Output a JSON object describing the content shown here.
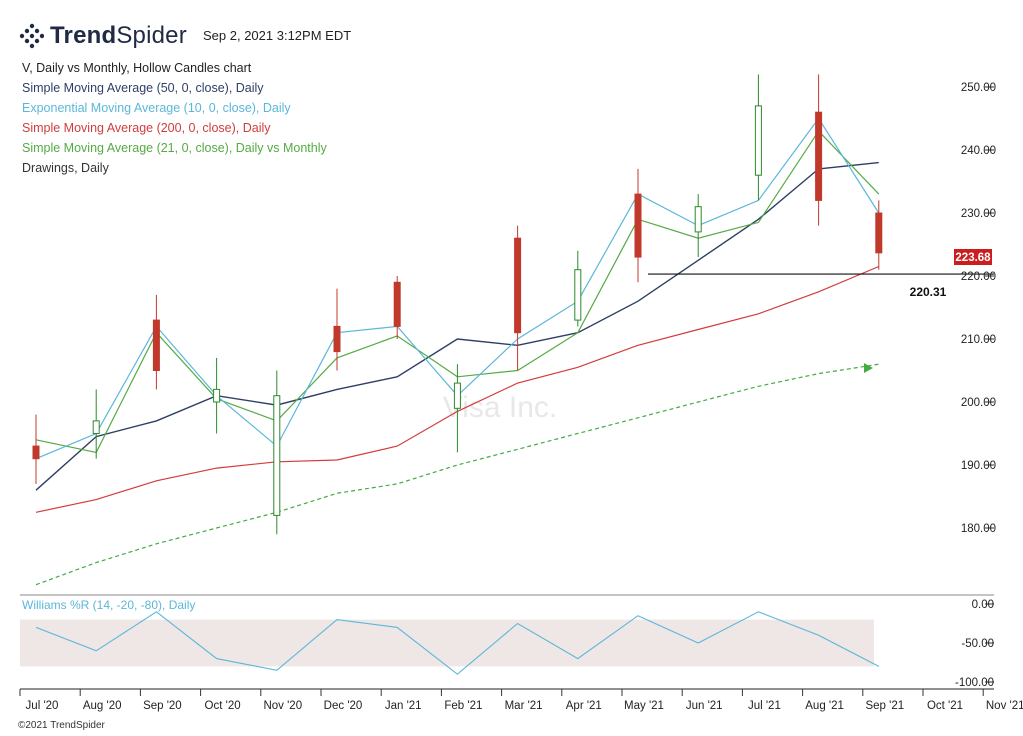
{
  "header": {
    "brand_prefix": "Trend",
    "brand_suffix": "Spider",
    "timestamp": "Sep 2, 2021 3:12PM EDT"
  },
  "legend": [
    {
      "text": "V, Daily vs Monthly, Hollow Candles chart",
      "color": "#222222"
    },
    {
      "text": "Simple Moving Average (50, 0, close), Daily",
      "color": "#2e3f66"
    },
    {
      "text": "Exponential Moving Average (10, 0, close), Daily",
      "color": "#5bb7d9"
    },
    {
      "text": "Simple Moving Average (200, 0, close), Daily",
      "color": "#d23c3c"
    },
    {
      "text": "Simple Moving Average (21, 0, close), Daily vs Monthly",
      "color": "#55aa44"
    },
    {
      "text": "Drawings, Daily",
      "color": "#333333"
    }
  ],
  "watermark": "Visa Inc.",
  "copyright": "©2021 TrendSpider",
  "chart_data": {
    "type": "candlestick",
    "symbol": "V",
    "price_axis": {
      "ticks": [
        "250.00",
        "240.00",
        "230.00",
        "220.00",
        "210.00",
        "200.00",
        "190.00",
        "180.00"
      ],
      "values": [
        250,
        240,
        230,
        220,
        210,
        200,
        190,
        180
      ],
      "range": [
        169.5,
        255
      ]
    },
    "time_axis": [
      "Jul '20",
      "Aug '20",
      "Sep '20",
      "Oct '20",
      "Nov '20",
      "Dec '20",
      "Jan '21",
      "Feb '21",
      "Mar '21",
      "Apr '21",
      "May '21",
      "Jun '21",
      "Jul '21",
      "Aug '21",
      "Sep '21",
      "Oct '21",
      "Nov '21"
    ],
    "last_price": {
      "label": "223.68",
      "value": 223.68,
      "color": "#cc1e1e"
    },
    "horizontal_line": {
      "label": "220.31",
      "value": 220.31,
      "start": "May '21",
      "color": "#111111"
    },
    "series": {
      "sma50": {
        "name": "Simple Moving Average (50, 0, close), Daily",
        "color": "#2e3f66",
        "points": [
          [
            "Jul '20",
            186
          ],
          [
            "Aug '20",
            194.5
          ],
          [
            "Sep '20",
            197
          ],
          [
            "Oct '20",
            201
          ],
          [
            "Nov '20",
            199.5
          ],
          [
            "Dec '20",
            202
          ],
          [
            "Jan '21",
            204
          ],
          [
            "Feb '21",
            210
          ],
          [
            "Mar '21",
            209
          ],
          [
            "Apr '21",
            211
          ],
          [
            "May '21",
            216
          ],
          [
            "Jun '21",
            222.5
          ],
          [
            "Jul '21",
            229
          ],
          [
            "Aug '21",
            237
          ],
          [
            "Sep '21",
            238
          ]
        ]
      },
      "ema10": {
        "name": "Exponential Moving Average (10, 0, close), Daily",
        "color": "#5bb7d9",
        "points": [
          [
            "Jul '20",
            191
          ],
          [
            "Aug '20",
            195
          ],
          [
            "Sep '20",
            212
          ],
          [
            "Oct '20",
            201
          ],
          [
            "Nov '20",
            193
          ],
          [
            "Dec '20",
            211
          ],
          [
            "Jan '21",
            212
          ],
          [
            "Feb '21",
            201
          ],
          [
            "Mar '21",
            210
          ],
          [
            "Apr '21",
            216
          ],
          [
            "May '21",
            233
          ],
          [
            "Jun '21",
            228
          ],
          [
            "Jul '21",
            232
          ],
          [
            "Aug '21",
            245
          ],
          [
            "Sep '21",
            230
          ]
        ]
      },
      "sma200": {
        "name": "Simple Moving Average (200, 0, close), Daily",
        "color": "#d23c3c",
        "points": [
          [
            "Jul '20",
            182.5
          ],
          [
            "Aug '20",
            184.5
          ],
          [
            "Sep '20",
            187.5
          ],
          [
            "Oct '20",
            189.5
          ],
          [
            "Nov '20",
            190.5
          ],
          [
            "Dec '20",
            190.8
          ],
          [
            "Jan '21",
            193
          ],
          [
            "Feb '21",
            198.5
          ],
          [
            "Mar '21",
            203
          ],
          [
            "Apr '21",
            205.5
          ],
          [
            "May '21",
            209
          ],
          [
            "Jun '21",
            211.5
          ],
          [
            "Jul '21",
            214
          ],
          [
            "Aug '21",
            217.5
          ],
          [
            "Sep '21",
            221.5
          ]
        ]
      },
      "sma21": {
        "name": "Simple Moving Average (21, 0, close), Daily vs Monthly",
        "color": "#55aa44",
        "points": [
          [
            "Jul '20",
            194
          ],
          [
            "Aug '20",
            192
          ],
          [
            "Sep '20",
            211
          ],
          [
            "Oct '20",
            200.5
          ],
          [
            "Nov '20",
            197
          ],
          [
            "Dec '20",
            207
          ],
          [
            "Jan '21",
            210.5
          ],
          [
            "Feb '21",
            204
          ],
          [
            "Mar '21",
            205
          ],
          [
            "Apr '21",
            211
          ],
          [
            "May '21",
            229
          ],
          [
            "Jun '21",
            226
          ],
          [
            "Jul '21",
            228.5
          ],
          [
            "Aug '21",
            243
          ],
          [
            "Sep '21",
            233
          ]
        ]
      },
      "sma21_monthly": {
        "name": "Simple Moving Average (21, 0, close), Daily vs Monthly",
        "color": "#44aa44",
        "style": "dashed",
        "points": [
          [
            "Jul '20",
            171
          ],
          [
            "Aug '20",
            174.5
          ],
          [
            "Sep '20",
            177.5
          ],
          [
            "Oct '20",
            180
          ],
          [
            "Nov '20",
            182.5
          ],
          [
            "Dec '20",
            185.5
          ],
          [
            "Jan '21",
            187
          ],
          [
            "Feb '21",
            190
          ],
          [
            "Mar '21",
            192.5
          ],
          [
            "Apr '21",
            195
          ],
          [
            "May '21",
            197.5
          ],
          [
            "Jun '21",
            200
          ],
          [
            "Jul '21",
            202.5
          ],
          [
            "Aug '21",
            204.5
          ],
          [
            "Sep '21",
            206
          ]
        ]
      }
    },
    "candles": [
      {
        "x": "Jul '20",
        "o": 193,
        "h": 198,
        "l": 187,
        "c": 191
      },
      {
        "x": "Aug '20",
        "o": 195,
        "h": 202,
        "l": 191,
        "c": 197
      },
      {
        "x": "Sep '20",
        "o": 213,
        "h": 217,
        "l": 202,
        "c": 205
      },
      {
        "x": "Oct '20",
        "o": 200,
        "h": 207,
        "l": 195,
        "c": 202
      },
      {
        "x": "Nov '20",
        "o": 182,
        "h": 205,
        "l": 179,
        "c": 201
      },
      {
        "x": "Dec '20",
        "o": 212,
        "h": 218,
        "l": 205,
        "c": 208
      },
      {
        "x": "Jan '21",
        "o": 219,
        "h": 220,
        "l": 210,
        "c": 212
      },
      {
        "x": "Feb '21",
        "o": 199,
        "h": 206,
        "l": 192,
        "c": 203
      },
      {
        "x": "Mar '21",
        "o": 226,
        "h": 228,
        "l": 205,
        "c": 211
      },
      {
        "x": "Apr '21",
        "o": 213,
        "h": 224,
        "l": 212,
        "c": 221
      },
      {
        "x": "May '21",
        "o": 233,
        "h": 237,
        "l": 219,
        "c": 223
      },
      {
        "x": "Jun '21",
        "o": 227,
        "h": 233,
        "l": 223,
        "c": 231
      },
      {
        "x": "Jul '21",
        "o": 236,
        "h": 252,
        "l": 232,
        "c": 247
      },
      {
        "x": "Aug '21",
        "o": 246,
        "h": 252,
        "l": 228,
        "c": 232
      },
      {
        "x": "Sep '21",
        "o": 230,
        "h": 232,
        "l": 221,
        "c": 223.68
      }
    ],
    "williams_r": {
      "label": "Williams %R (14, -20, -80), Daily",
      "ticks": [
        "0.00",
        "-50.00",
        "-100.00"
      ],
      "values": [
        0,
        -50,
        -100
      ],
      "band": [
        -20,
        -80
      ],
      "color": "#5bb7d9",
      "points": [
        [
          "Jul '20",
          -30
        ],
        [
          "Aug '20",
          -60
        ],
        [
          "Sep '20",
          -10
        ],
        [
          "Oct '20",
          -70
        ],
        [
          "Nov '20",
          -85
        ],
        [
          "Dec '20",
          -20
        ],
        [
          "Jan '21",
          -30
        ],
        [
          "Feb '21",
          -90
        ],
        [
          "Mar '21",
          -25
        ],
        [
          "Apr '21",
          -70
        ],
        [
          "May '21",
          -15
        ],
        [
          "Jun '21",
          -50
        ],
        [
          "Jul '21",
          -10
        ],
        [
          "Aug '21",
          -40
        ],
        [
          "Sep '21",
          -80
        ]
      ]
    }
  }
}
